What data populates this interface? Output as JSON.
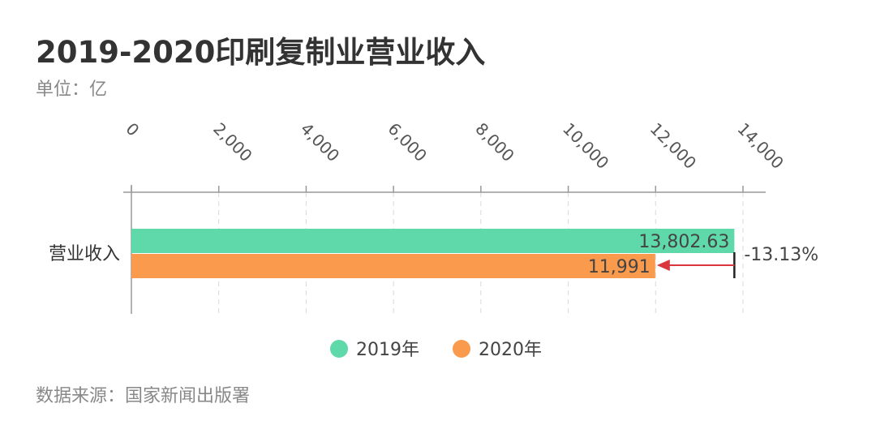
{
  "header": {
    "title": "2019-2020印刷复制业营业收入",
    "unit": "单位：亿"
  },
  "footer": {
    "source": "数据来源：国家新闻出版署"
  },
  "colors": {
    "series_2019": "#5fd8aa",
    "series_2020": "#fa9a4c",
    "arrow": "#d9363e",
    "axis": "#999999",
    "grid": "#d9d9d9"
  },
  "chart_data": {
    "type": "bar",
    "orientation": "horizontal",
    "categories": [
      "营业收入"
    ],
    "series": [
      {
        "name": "2019年",
        "values": [
          13802.63
        ],
        "label": "13,802.63"
      },
      {
        "name": "2020年",
        "values": [
          11991
        ],
        "label": "11,991"
      }
    ],
    "xlim": [
      0,
      14500
    ],
    "xticks": [
      0,
      2000,
      4000,
      6000,
      8000,
      10000,
      12000,
      14000
    ],
    "xtick_labels": [
      "0",
      "2,000",
      "4,000",
      "6,000",
      "8,000",
      "10,000",
      "12,000",
      "14,000"
    ],
    "axis_position": "top",
    "grid": true,
    "legend": "bottom-center",
    "annotation": {
      "text": "-13.13%",
      "from_series": "2019年",
      "to_series": "2020年"
    }
  }
}
